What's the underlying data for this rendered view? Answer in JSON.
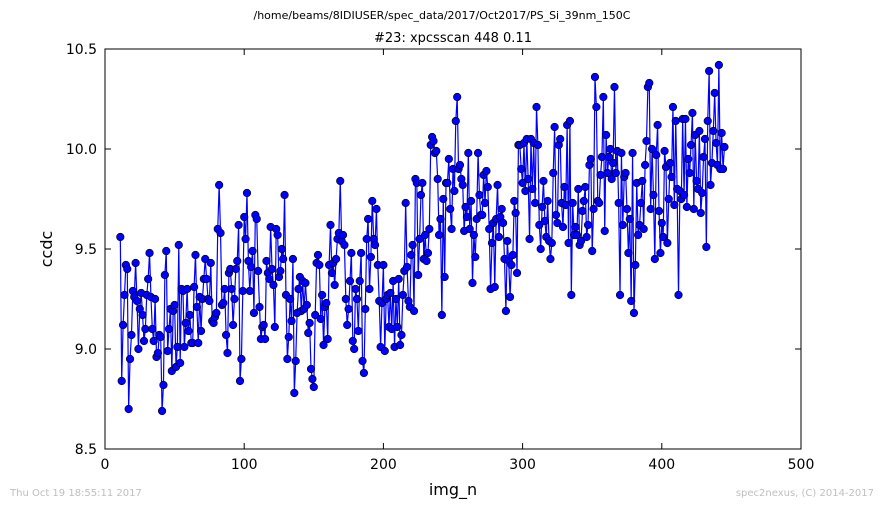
{
  "chart_data": {
    "type": "line",
    "suptitle": "/home/beams/8IDIUSER/spec_data/2017/Oct2017/PS_Si_39nm_150C",
    "title": "#23: xpcsscan 448 0.11",
    "xlabel": "img_n",
    "ylabel": "ccdc",
    "xlim": [
      0,
      500
    ],
    "ylim": [
      8.5,
      10.5
    ],
    "xticks": [
      0,
      100,
      200,
      300,
      400,
      500
    ],
    "xtick_labels": [
      "0",
      "100",
      "200",
      "300",
      "400",
      "500"
    ],
    "yticks": [
      8.5,
      9.0,
      9.5,
      10.0,
      10.5
    ],
    "ytick_labels": [
      "8.5",
      "9.0",
      "9.5",
      "10.0",
      "10.5"
    ],
    "grid": false,
    "marker": "circle",
    "color": "#0000ff",
    "series": [
      {
        "x_start": 11,
        "x_step": 1,
        "y": [
          9.56,
          8.84,
          9.12,
          9.27,
          9.42,
          9.4,
          8.7,
          8.95,
          9.07,
          9.29,
          9.26,
          9.43,
          9.24,
          9.0,
          9.2,
          9.28,
          9.17,
          9.04,
          9.1,
          9.27,
          9.35,
          9.48,
          9.26,
          9.1,
          9.04,
          9.25,
          8.96,
          8.98,
          9.07,
          9.06,
          8.69,
          8.82,
          9.37,
          9.49,
          8.99,
          9.1,
          9.2,
          8.89,
          9.19,
          9.22,
          8.91,
          9.01,
          9.52,
          8.93,
          9.3,
          9.29,
          9.01,
          9.13,
          9.3,
          9.09,
          9.17,
          9.03,
          9.03,
          9.31,
          9.47,
          9.21,
          9.03,
          9.26,
          9.09,
          9.25,
          9.35,
          9.45,
          9.35,
          9.25,
          9.24,
          9.43,
          9.14,
          9.13,
          9.16,
          9.18,
          9.6,
          9.82,
          9.58,
          9.22,
          9.23,
          9.3,
          9.07,
          8.98,
          9.38,
          9.4,
          9.3,
          9.12,
          9.25,
          9.4,
          9.44,
          9.62,
          8.84,
          8.95,
          9.29,
          9.66,
          9.55,
          9.78,
          9.44,
          9.29,
          9.41,
          9.49,
          9.18,
          9.67,
          9.65,
          9.39,
          9.21,
          9.05,
          9.11,
          9.12,
          9.05,
          9.44,
          9.38,
          9.35,
          9.61,
          9.4,
          9.32,
          9.11,
          9.6,
          9.57,
          9.36,
          9.39,
          9.5,
          9.45,
          9.77,
          9.27,
          8.95,
          9.06,
          9.25,
          9.14,
          9.45,
          8.78,
          8.94,
          9.18,
          9.3,
          9.36,
          9.19,
          9.34,
          9.2,
          9.33,
          9.22,
          9.08,
          9.13,
          8.9,
          8.85,
          8.81,
          9.17,
          9.43,
          9.47,
          9.42,
          9.15,
          9.27,
          9.02,
          9.21,
          9.23,
          9.05,
          9.42,
          9.62,
          9.38,
          9.43,
          9.32,
          9.45,
          9.55,
          9.58,
          9.84,
          9.54,
          9.57,
          9.52,
          9.25,
          9.12,
          9.2,
          9.34,
          9.48,
          9.04,
          9.0,
          9.3,
          9.25,
          9.09,
          9.34,
          9.48,
          8.94,
          8.88,
          9.2,
          9.55,
          9.65,
          9.3,
          9.46,
          9.74,
          9.55,
          9.52,
          9.7,
          9.42,
          9.24,
          9.01,
          9.23,
          9.42,
          8.99,
          9.25,
          9.27,
          9.11,
          9.28,
          9.1,
          9.34,
          9.01,
          9.25,
          9.11,
          9.35,
          9.02,
          9.07,
          9.27,
          9.39,
          9.73,
          9.41,
          9.24,
          9.21,
          9.47,
          9.52,
          9.19,
          9.85,
          9.83,
          9.37,
          9.55,
          9.77,
          9.83,
          9.45,
          9.57,
          9.44,
          9.48,
          9.6,
          10.02,
          10.06,
          10.04,
          9.98,
          9.99,
          9.85,
          9.57,
          9.65,
          9.17,
          9.75,
          9.36,
          9.83,
          9.83,
          9.95,
          9.7,
          9.6,
          9.9,
          9.79,
          10.14,
          10.26,
          9.9,
          9.92,
          9.85,
          9.82,
          9.59,
          9.71,
          9.66,
          9.98,
          9.6,
          9.74,
          9.33,
          9.57,
          9.46,
          9.65,
          9.98,
          9.77,
          9.67,
          9.67,
          9.87,
          9.73,
          9.89,
          9.81,
          9.6,
          9.3,
          9.53,
          9.63,
          9.31,
          9.65,
          9.82,
          9.56,
          9.66,
          9.7,
          9.63,
          9.45,
          9.19,
          9.54,
          9.44,
          9.26,
          9.42,
          9.47,
          9.74,
          9.68,
          9.38,
          10.02,
          10.02,
          9.9,
          9.83,
          10.03,
          9.79,
          10.05,
          9.85,
          9.55,
          10.05,
          9.8,
          10.03,
          9.73,
          10.21,
          10.02,
          9.62,
          9.5,
          9.71,
          9.84,
          9.64,
          9.56,
          9.74,
          9.54,
          9.45,
          9.53,
          9.88,
          10.11,
          9.67,
          9.63,
          10.02,
          10.05,
          9.73,
          9.61,
          9.81,
          9.72,
          10.12,
          9.53,
          10.14,
          9.27,
          9.73,
          9.57,
          9.61,
          9.57,
          9.8,
          9.52,
          9.54,
          9.69,
          9.74,
          9.81,
          9.56,
          9.62,
          9.92,
          9.95,
          9.49,
          9.7,
          10.36,
          10.21,
          9.74,
          9.73,
          9.87,
          9.96,
          10.26,
          9.59,
          10.07,
          9.88,
          9.96,
          10.0,
          9.85,
          9.93,
          10.31,
          9.88,
          9.99,
          9.73,
          9.27,
          9.98,
          9.62,
          9.86,
          9.88,
          9.7,
          9.48,
          9.65,
          9.24,
          9.98,
          9.18,
          9.42,
          9.83,
          9.57,
          9.62,
          9.73,
          9.84,
          9.6,
          9.92,
          10.04,
          10.31,
          10.33,
          9.7,
          10.0,
          9.77,
          9.45,
          9.97,
          10.12,
          9.69,
          9.48,
          9.63,
          9.56,
          9.99,
          9.91,
          9.53,
          9.75,
          9.93,
          9.86,
          10.21,
          9.72,
          10.14,
          9.8,
          9.27,
          9.79,
          9.75,
          10.15,
          9.77,
          10.15,
          9.71,
          9.95,
          9.88,
          10.02,
          10.18,
          9.7,
          10.07,
          9.84,
          9.8,
          10.09,
          9.68,
          9.78,
          9.96,
          10.05,
          9.51,
          10.14,
          10.39,
          9.82,
          9.93,
          10.09,
          10.28,
          10.03,
          9.92,
          10.42,
          9.9,
          10.08,
          9.9,
          10.01
        ]
      }
    ]
  },
  "footer": {
    "left": "Thu Oct 19 18:55:11 2017",
    "right": "spec2nexus, (C) 2014-2017"
  }
}
